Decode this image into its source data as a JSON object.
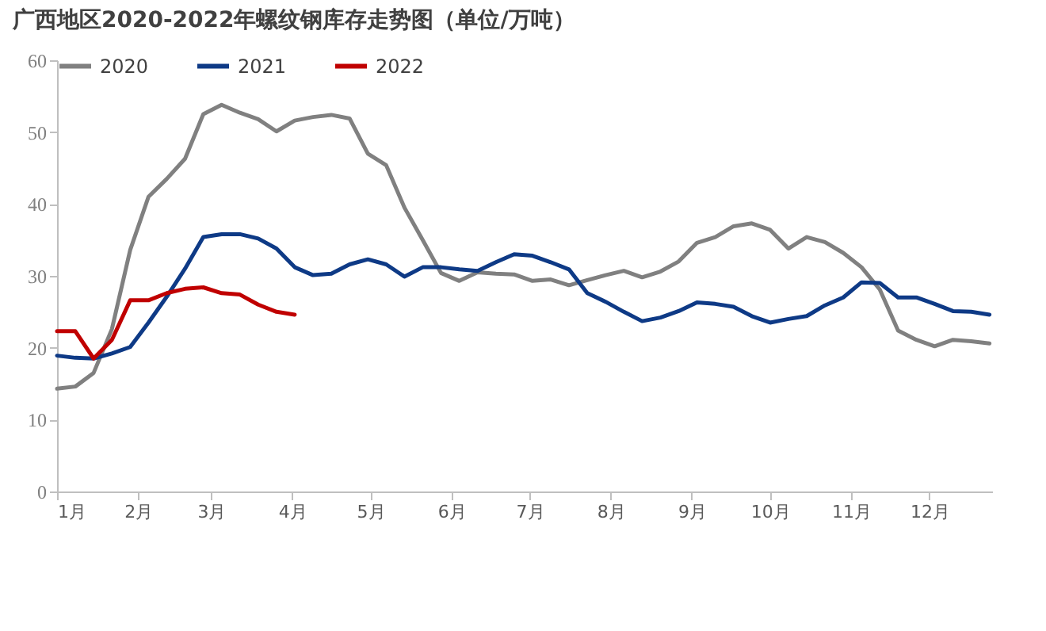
{
  "chart_data": {
    "type": "line",
    "title": "广西地区2020-2022年螺纹钢库存走势图（单位/万吨）",
    "x": [
      "--01-01",
      "--01-08",
      "--01-15",
      "--01-22",
      "--01-29",
      "--02-05",
      "--02-12",
      "--02-19",
      "--02-26",
      "--03-05",
      "--03-12",
      "--03-19",
      "--03-26",
      "--04-02",
      "--04-09",
      "--04-16",
      "--04-23",
      "--04-30",
      "--05-07",
      "--05-14",
      "--05-21",
      "--05-28",
      "--06-04",
      "--06-11",
      "--06-18",
      "--06-25",
      "--07-02",
      "--07-09",
      "--07-16",
      "--07-23",
      "--07-30",
      "--08-06",
      "--08-13",
      "--08-20",
      "--08-27",
      "--09-03",
      "--09-10",
      "--09-17",
      "--09-24",
      "--10-01",
      "--10-08",
      "--10-15",
      "--10-22",
      "--10-29",
      "--11-05",
      "--11-12",
      "--11-19",
      "--11-26",
      "--12-03",
      "--12-10",
      "--12-17",
      "--12-24"
    ],
    "series": [
      {
        "name": "2020",
        "color": "#808080",
        "values": [
          14.3,
          14.6,
          16.5,
          22.6,
          33.6,
          41,
          43.5,
          46.3,
          52.5,
          53.8,
          52.7,
          51.8,
          50.1,
          51.6,
          52.1,
          52.4,
          51.9,
          47,
          45.4,
          39.5,
          35,
          30.4,
          29.3,
          30.5,
          30.3,
          30.2,
          29.3,
          29.5,
          28.7,
          29.4,
          30.1,
          30.7,
          29.8,
          30.6,
          32,
          34.6,
          35.4,
          36.9,
          37.3,
          36.4,
          33.8,
          35.4,
          34.7,
          33.2,
          31.2,
          28.1,
          22.4,
          21.1,
          20.2,
          21.1,
          20.9,
          20.6
        ]
      },
      {
        "name": "2021",
        "color": "#0e3a86",
        "values": [
          18.9,
          18.6,
          18.5,
          19.2,
          20.1,
          23.5,
          27.1,
          31,
          35.4,
          35.8,
          35.8,
          35.2,
          33.8,
          31.2,
          30.1,
          30.3,
          31.6,
          32.3,
          31.6,
          29.9,
          31.2,
          31.2,
          30.9,
          30.7,
          31.9,
          33,
          32.8,
          31.9,
          30.9,
          27.6,
          26.4,
          25,
          23.7,
          24.2,
          25.1,
          26.3,
          26.1,
          25.7,
          24.4,
          23.5,
          24,
          24.4,
          25.9,
          27,
          29.1,
          29,
          27,
          27,
          26.1,
          25.1,
          25,
          24.6
        ]
      },
      {
        "name": "2022",
        "color": "#c00000",
        "x": [
          "--01-01",
          "--01-08",
          "--01-15",
          "--01-22",
          "--01-29",
          "--02-05",
          "--02-12",
          "--02-19",
          "--02-26",
          "--03-05",
          "--03-12",
          "--03-19",
          "--03-26",
          "--04-02"
        ],
        "values": [
          22.3,
          22.3,
          18.5,
          21.1,
          26.6,
          26.6,
          27.6,
          28.2,
          28.4,
          27.6,
          27.4,
          26,
          25,
          24.6
        ]
      }
    ],
    "xlim": [
      "--01-01",
      "--12-25"
    ],
    "xticks": [
      {
        "value": "--01-01",
        "label": "1月"
      },
      {
        "value": "--02-01",
        "label": "2月"
      },
      {
        "value": "--03-01",
        "label": "3月"
      },
      {
        "value": "--04-01",
        "label": "4月"
      },
      {
        "value": "--05-01",
        "label": "5月"
      },
      {
        "value": "--06-01",
        "label": "6月"
      },
      {
        "value": "--07-01",
        "label": "7月"
      },
      {
        "value": "--08-01",
        "label": "8月"
      },
      {
        "value": "--09-01",
        "label": "9月"
      },
      {
        "value": "--10-01",
        "label": "10月"
      },
      {
        "value": "--11-01",
        "label": "11月"
      },
      {
        "value": "--12-01",
        "label": "12月"
      }
    ],
    "ylim": [
      0,
      60
    ],
    "yticks": [
      0,
      10,
      20,
      30,
      40,
      50,
      60
    ],
    "legend": "top"
  }
}
